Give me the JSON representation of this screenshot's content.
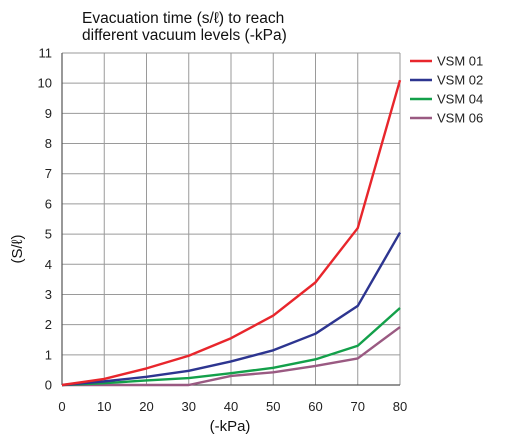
{
  "chart_data": {
    "type": "line",
    "title_lines": [
      "Evacuation time (s/ℓ) to reach",
      "different vacuum levels (-kPa)"
    ],
    "xlabel": "(-kPa)",
    "ylabel": "(S/ℓ)",
    "xlim": [
      0,
      80
    ],
    "ylim": [
      0,
      11
    ],
    "x_ticks": [
      0,
      10,
      20,
      30,
      40,
      50,
      60,
      70,
      80
    ],
    "y_ticks": [
      0,
      1,
      2,
      3,
      4,
      5,
      6,
      7,
      8,
      9,
      10,
      11
    ],
    "grid": true,
    "legend_position": "right",
    "x": [
      0,
      10,
      20,
      30,
      40,
      50,
      60,
      70,
      80
    ],
    "series": [
      {
        "name": "VSM  01",
        "color": "#e8262c",
        "values": [
          0,
          0.2,
          0.55,
          0.97,
          1.55,
          2.3,
          3.4,
          5.2,
          10.1
        ]
      },
      {
        "name": "VSM  02",
        "color": "#2d3590",
        "values": [
          0,
          0.12,
          0.27,
          0.47,
          0.78,
          1.15,
          1.7,
          2.62,
          5.05
        ]
      },
      {
        "name": "VSM  04",
        "color": "#13a04a",
        "values": [
          0,
          0.06,
          0.15,
          0.23,
          0.39,
          0.57,
          0.85,
          1.3,
          2.55
        ]
      },
      {
        "name": "VSM  06",
        "color": "#9a5a82",
        "values": [
          0,
          0,
          0,
          0,
          0.3,
          0.42,
          0.63,
          0.88,
          1.92
        ]
      }
    ]
  }
}
